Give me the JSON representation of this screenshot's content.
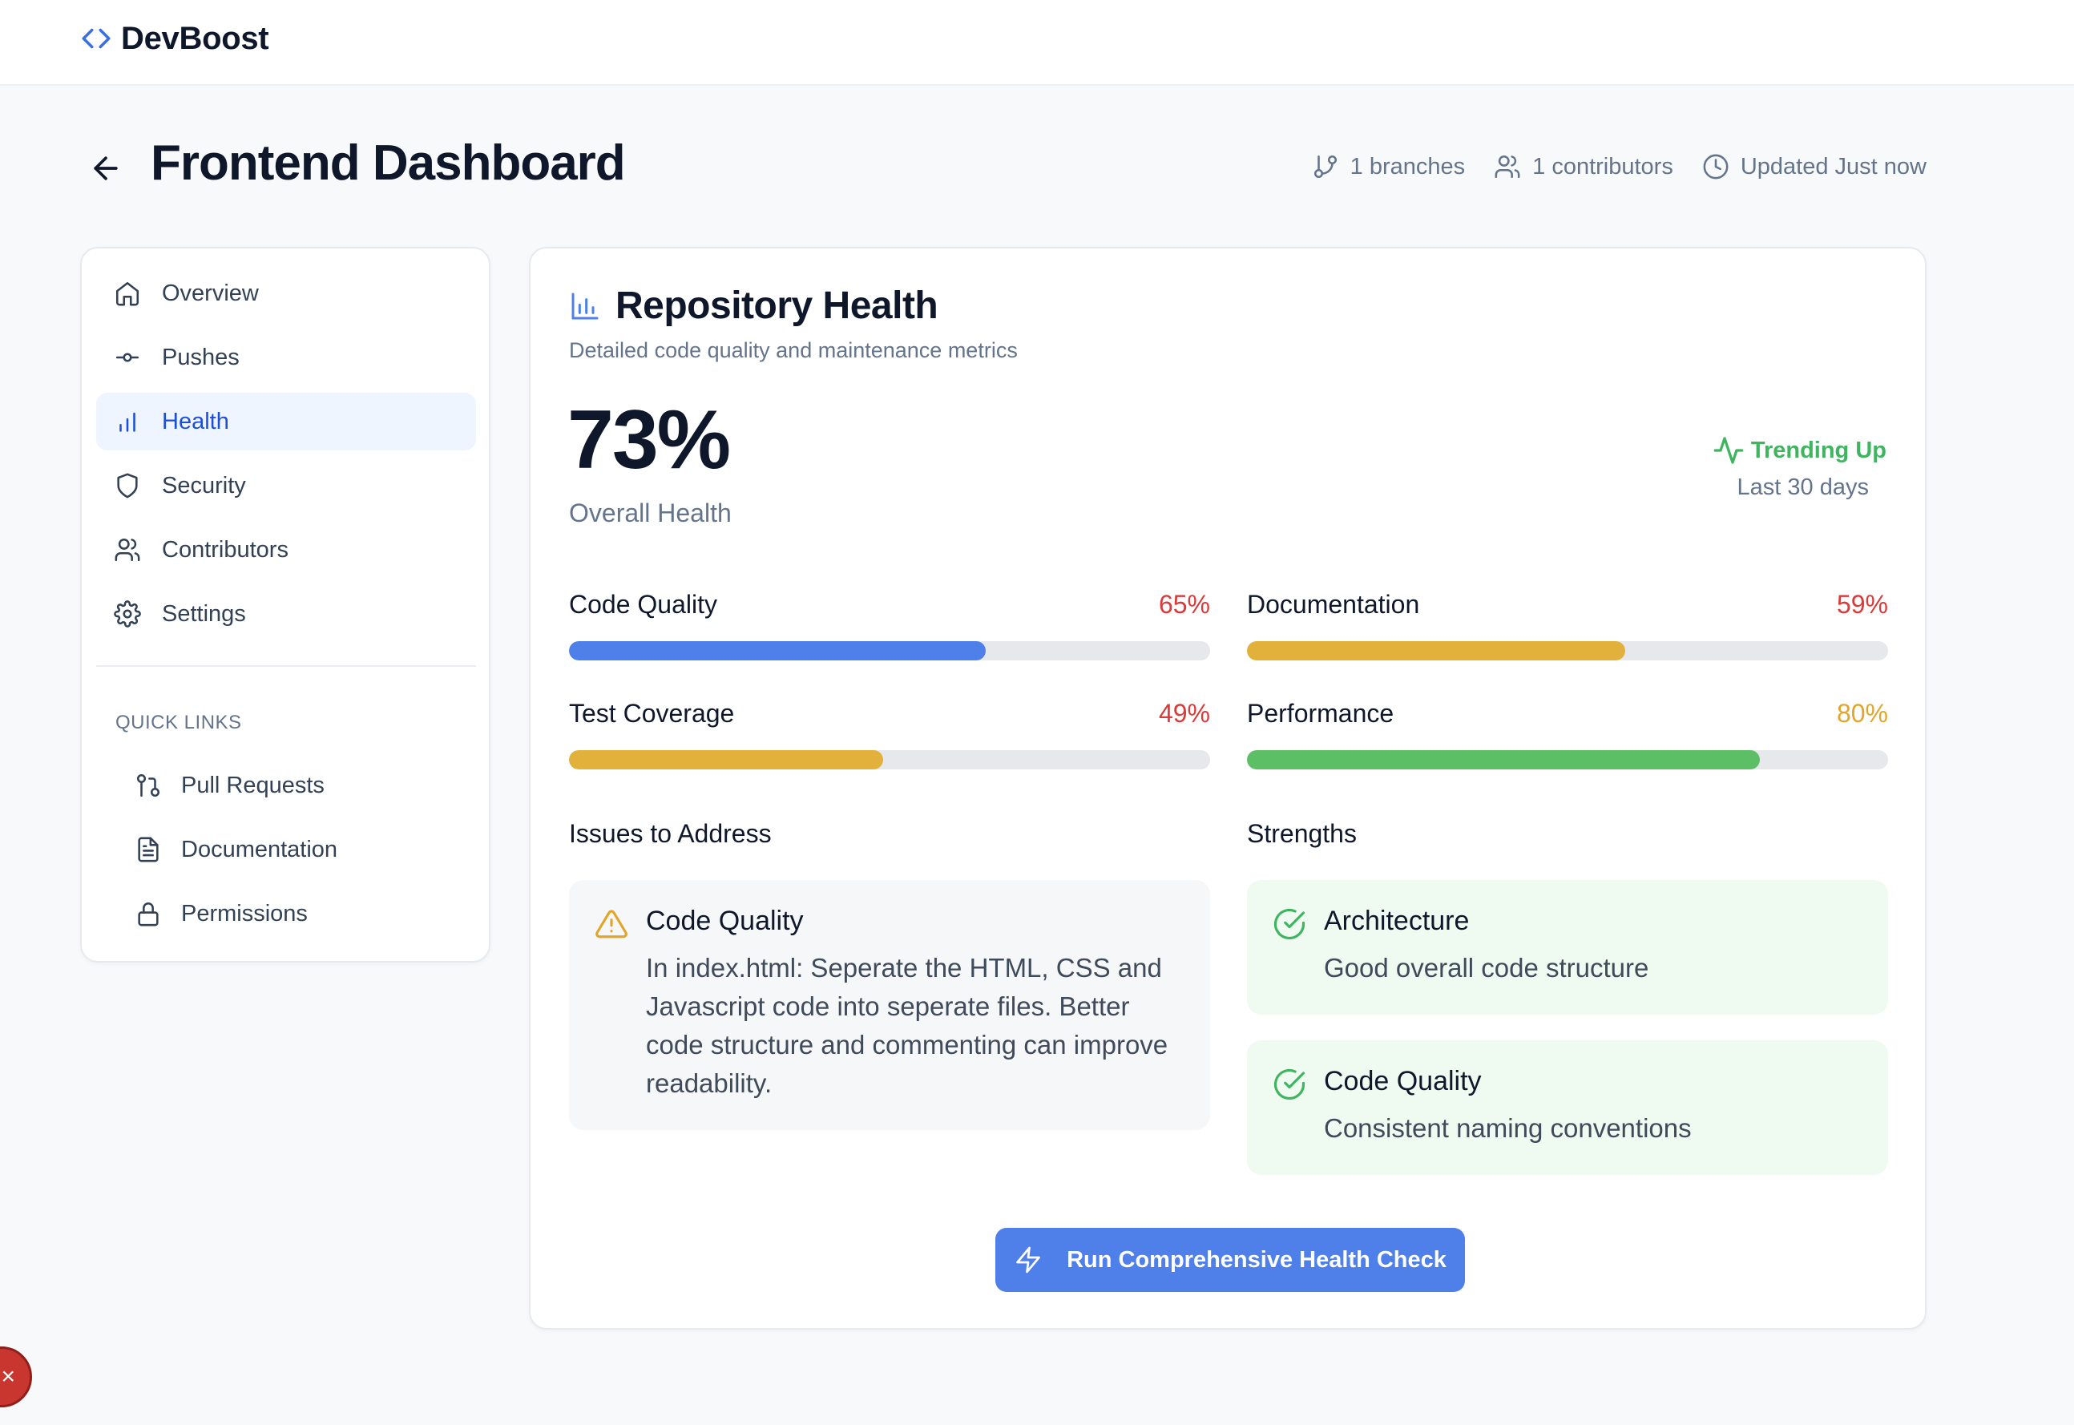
{
  "app": {
    "name": "DevBoost",
    "logo_icon": "code-brackets-icon"
  },
  "header": {
    "title": "Frontend Dashboard",
    "meta": {
      "branches": "1 branches",
      "contributors": "1 contributors",
      "updated": "Updated Just now"
    }
  },
  "sidebar": {
    "items": [
      {
        "label": "Overview",
        "icon": "home-icon",
        "active": false
      },
      {
        "label": "Pushes",
        "icon": "git-commit-icon",
        "active": false
      },
      {
        "label": "Health",
        "icon": "bar-chart-icon",
        "active": true
      },
      {
        "label": "Security",
        "icon": "shield-icon",
        "active": false
      },
      {
        "label": "Contributors",
        "icon": "users-icon",
        "active": false
      },
      {
        "label": "Settings",
        "icon": "gear-icon",
        "active": false
      }
    ],
    "quick_links_title": "QUICK LINKS",
    "quick_links": [
      {
        "label": "Pull Requests",
        "icon": "git-pull-request-icon"
      },
      {
        "label": "Documentation",
        "icon": "file-text-icon"
      },
      {
        "label": "Permissions",
        "icon": "lock-icon"
      }
    ]
  },
  "health": {
    "title": "Repository Health",
    "subtitle": "Detailed code quality and maintenance metrics",
    "overall_score": "73%",
    "overall_label": "Overall Health",
    "trend_label": "Trending Up",
    "trend_period": "Last 30 days",
    "metrics": [
      {
        "label": "Code Quality",
        "value_text": "65%",
        "value": 0.65,
        "bar_color": "#4f80ea",
        "text_color": "#dc3a3a"
      },
      {
        "label": "Documentation",
        "value_text": "59%",
        "value": 0.59,
        "bar_color": "#e2b13c",
        "text_color": "#dc3a3a"
      },
      {
        "label": "Test Coverage",
        "value_text": "49%",
        "value": 0.49,
        "bar_color": "#e2b13c",
        "text_color": "#dc3a3a"
      },
      {
        "label": "Performance",
        "value_text": "80%",
        "value": 0.8,
        "bar_color": "#5cbf66",
        "text_color": "#e2a52a"
      }
    ],
    "issues_title": "Issues to Address",
    "issues": [
      {
        "title": "Code Quality",
        "text": "In index.html: Seperate the HTML, CSS and Javascript code into seperate files. Better code structure and commenting can improve readability.",
        "icon": "warning-triangle-icon"
      }
    ],
    "strengths_title": "Strengths",
    "strengths": [
      {
        "title": "Architecture",
        "text": "Good overall code structure",
        "icon": "check-circle-icon"
      },
      {
        "title": "Code Quality",
        "text": "Consistent naming conventions",
        "icon": "check-circle-icon"
      }
    ],
    "action_button": "Run Comprehensive Health Check"
  },
  "colors": {
    "accent": "#4f80ea",
    "active_nav_bg": "#eef5ff",
    "active_nav_text": "#1d4ed8",
    "success": "#3fb560",
    "warning": "#e2b13c",
    "danger": "#dc3a3a"
  }
}
